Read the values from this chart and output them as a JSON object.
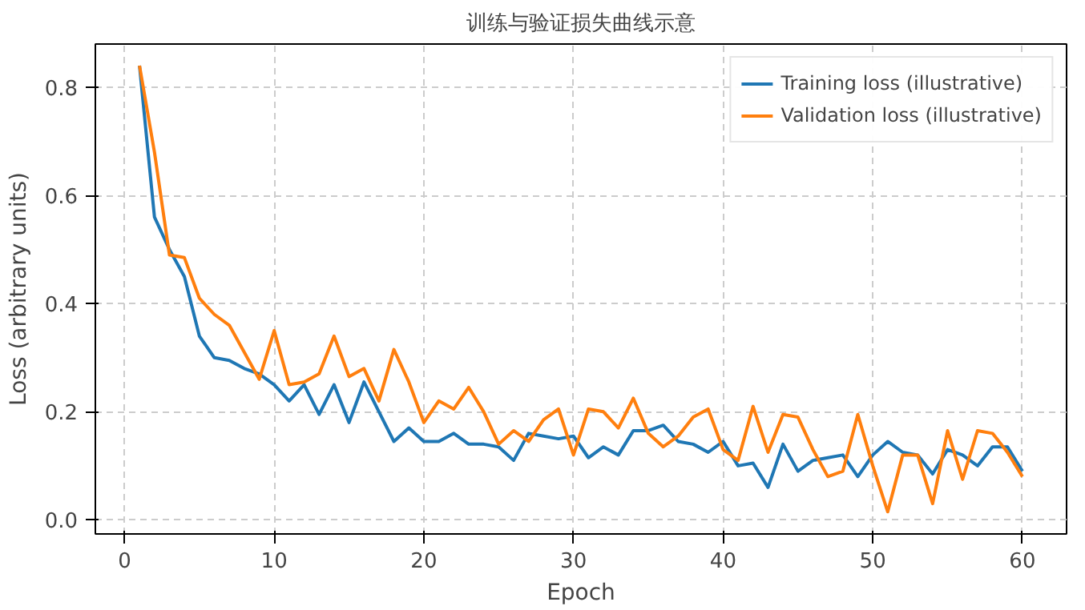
{
  "chart_data": {
    "type": "line",
    "title": "训练与验证损失曲线示意",
    "xlabel": "Epoch",
    "ylabel": "Loss (arbitrary units)",
    "x": [
      1,
      2,
      3,
      4,
      5,
      6,
      7,
      8,
      9,
      10,
      11,
      12,
      13,
      14,
      15,
      16,
      17,
      18,
      19,
      20,
      21,
      22,
      23,
      24,
      25,
      26,
      27,
      28,
      29,
      30,
      31,
      32,
      33,
      34,
      35,
      36,
      37,
      38,
      39,
      40,
      41,
      42,
      43,
      44,
      45,
      46,
      47,
      48,
      49,
      50,
      51,
      52,
      53,
      54,
      55,
      56,
      57,
      58,
      59,
      60
    ],
    "series": [
      {
        "name": "Training loss (illustrative)",
        "color": "#1f77b4",
        "values": [
          0.84,
          0.56,
          0.5,
          0.45,
          0.34,
          0.3,
          0.295,
          0.28,
          0.27,
          0.25,
          0.22,
          0.25,
          0.195,
          0.25,
          0.18,
          0.255,
          0.2,
          0.145,
          0.17,
          0.145,
          0.145,
          0.16,
          0.14,
          0.14,
          0.135,
          0.11,
          0.16,
          0.155,
          0.15,
          0.155,
          0.115,
          0.135,
          0.12,
          0.165,
          0.165,
          0.175,
          0.145,
          0.14,
          0.125,
          0.145,
          0.1,
          0.105,
          0.06,
          0.14,
          0.09,
          0.11,
          0.115,
          0.12,
          0.08,
          0.12,
          0.145,
          0.125,
          0.12,
          0.085,
          0.13,
          0.12,
          0.1,
          0.135,
          0.135,
          0.09
        ]
      },
      {
        "name": "Validation loss (illustrative)",
        "color": "#ff7f0e",
        "values": [
          0.84,
          0.68,
          0.49,
          0.485,
          0.41,
          0.38,
          0.36,
          0.31,
          0.26,
          0.35,
          0.25,
          0.255,
          0.27,
          0.34,
          0.265,
          0.28,
          0.22,
          0.315,
          0.255,
          0.18,
          0.22,
          0.205,
          0.245,
          0.2,
          0.14,
          0.165,
          0.145,
          0.185,
          0.205,
          0.12,
          0.205,
          0.2,
          0.17,
          0.225,
          0.16,
          0.135,
          0.155,
          0.19,
          0.205,
          0.13,
          0.11,
          0.21,
          0.125,
          0.195,
          0.19,
          0.13,
          0.08,
          0.09,
          0.195,
          0.1,
          0.015,
          0.12,
          0.12,
          0.03,
          0.165,
          0.075,
          0.165,
          0.16,
          0.125,
          0.08
        ]
      }
    ],
    "xlim": [
      -1.95,
      62.95
    ],
    "ylim": [
      -0.026,
      0.88
    ],
    "xticks": [
      0,
      10,
      20,
      30,
      40,
      50,
      60
    ],
    "yticks": [
      {
        "value": 0,
        "label": "0.0"
      },
      {
        "value": 0.2,
        "label": "0.2"
      },
      {
        "value": 0.4,
        "label": "0.4"
      },
      {
        "value": 0.6,
        "label": "0.6"
      },
      {
        "value": 0.8,
        "label": "0.8"
      }
    ],
    "grid": true,
    "legend": "top right",
    "line_style": "solid"
  }
}
